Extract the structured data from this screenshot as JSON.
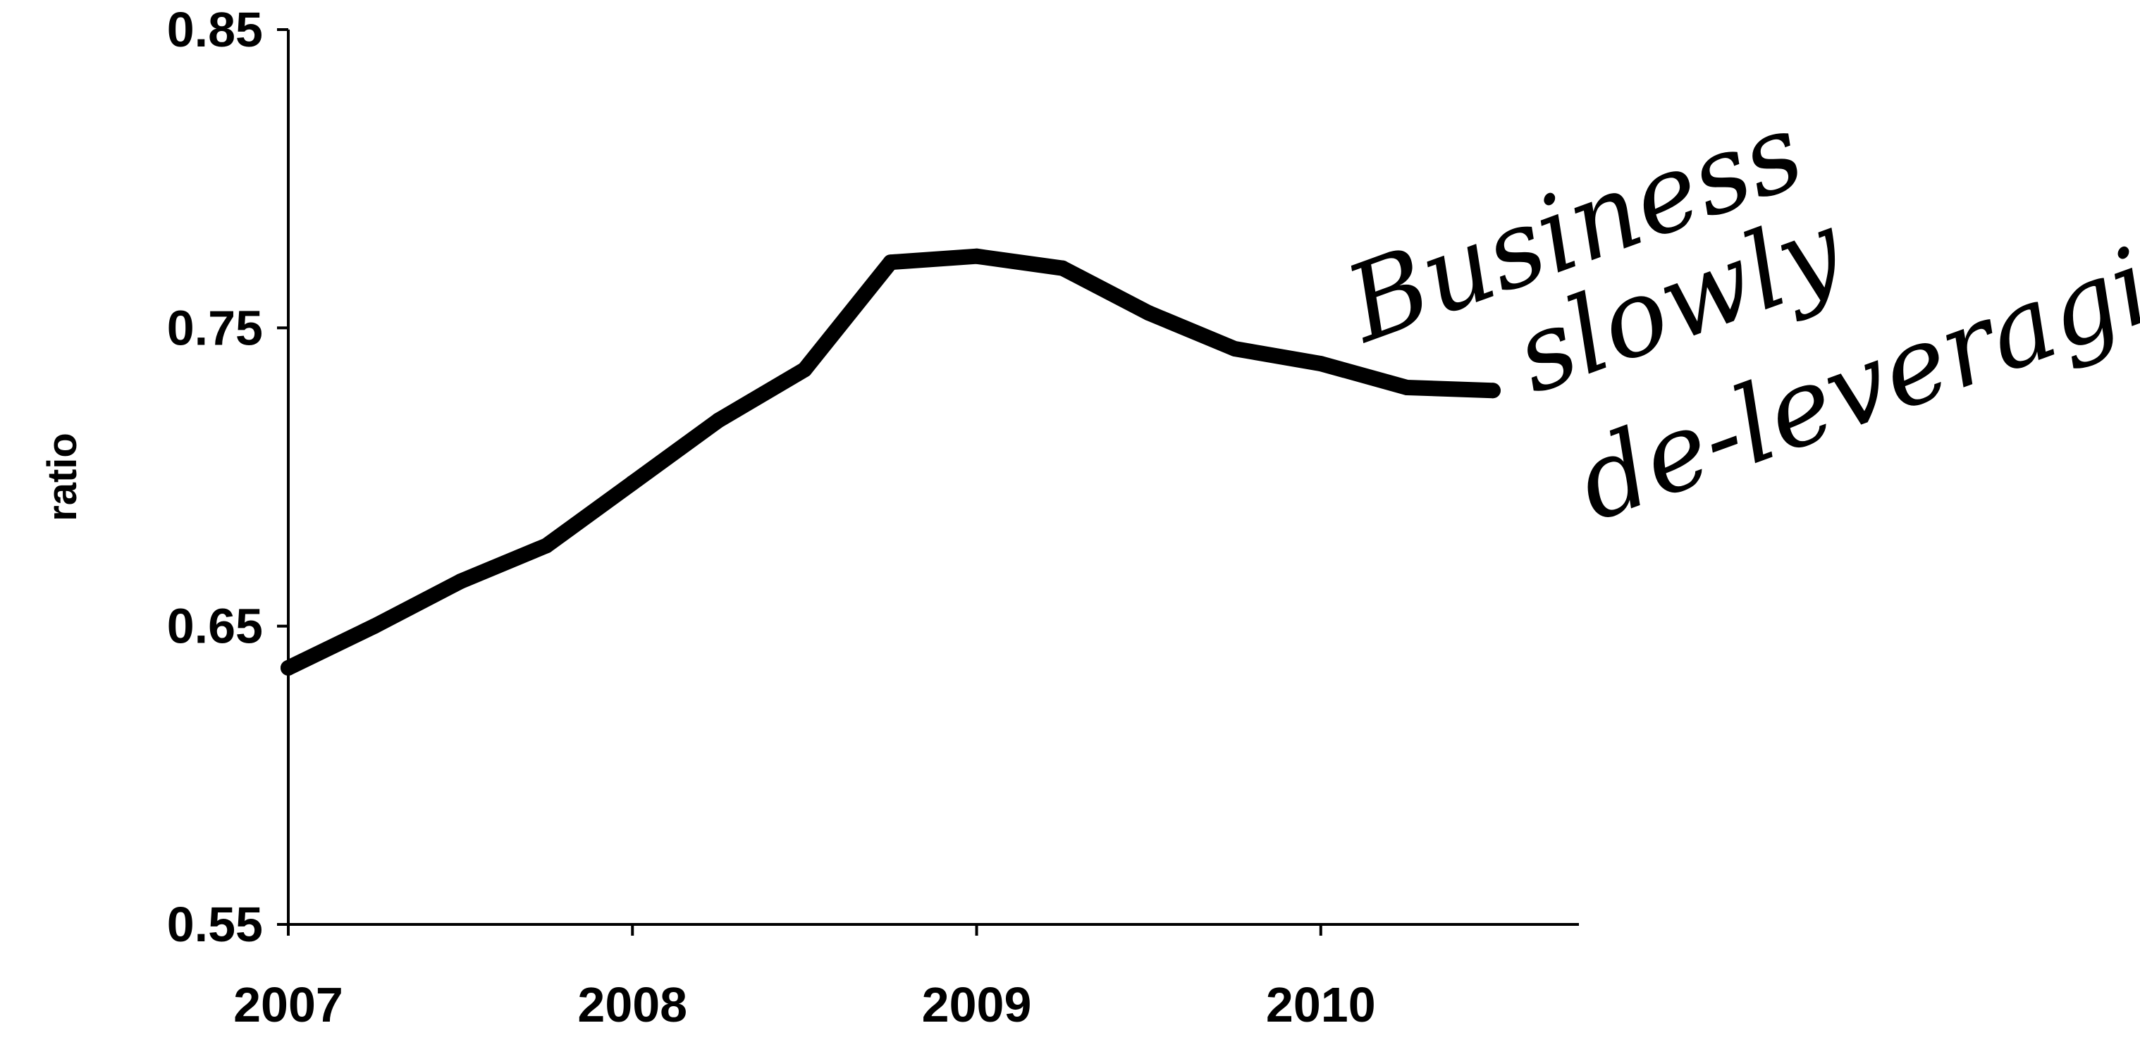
{
  "chart_data": {
    "type": "line",
    "ylabel": "ratio",
    "xlabel": "",
    "ylim": [
      0.55,
      0.85
    ],
    "xlim": [
      2007,
      2010.75
    ],
    "x_ticks": [
      "2007",
      "2008",
      "2009",
      "2010"
    ],
    "y_ticks": [
      "0.55",
      "0.65",
      "0.75",
      "0.85"
    ],
    "grid": false,
    "legend": "none",
    "series": [
      {
        "color": "#000000",
        "x": [
          2007.0,
          2007.25,
          2007.5,
          2007.75,
          2008.0,
          2008.25,
          2008.5,
          2008.75,
          2009.0,
          2009.25,
          2009.5,
          2009.75,
          2010.0,
          2010.25,
          2010.5
        ],
        "y": [
          0.636,
          0.65,
          0.665,
          0.677,
          0.698,
          0.719,
          0.736,
          0.772,
          0.774,
          0.77,
          0.755,
          0.743,
          0.738,
          0.73,
          0.729
        ]
      }
    ],
    "annotations": [
      {
        "lines": [
          "Business",
          "slowly",
          "de-leveraging."
        ]
      }
    ]
  }
}
